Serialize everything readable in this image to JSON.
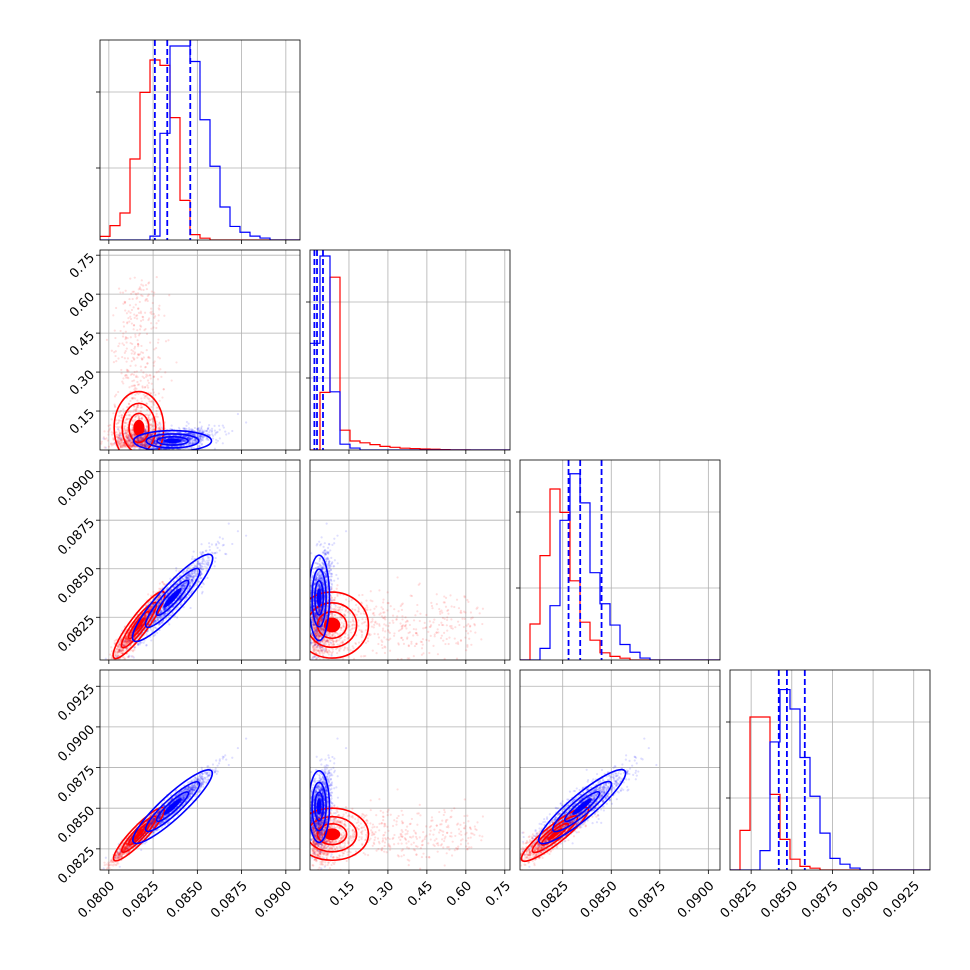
{
  "chart_data": {
    "type": "corner",
    "title": "",
    "grid": true,
    "series": [
      {
        "name": "",
        "color": "#ff0000"
      },
      {
        "name": "",
        "color": "#0000ff"
      }
    ],
    "quantiles_color": "#0000ff",
    "params": [
      {
        "index": 0,
        "range": [
          0.0795,
          0.0908
        ],
        "ticks": [
          "0.0800",
          "0.0825",
          "0.0850",
          "0.0875",
          "0.0900"
        ],
        "tick_values": [
          0.08,
          0.0825,
          0.085,
          0.0875,
          0.09
        ],
        "quantiles": [
          0.0826,
          0.0833,
          0.0846
        ],
        "hist_red": [
          0.02,
          0.08,
          0.15,
          0.45,
          0.82,
          1.0,
          0.97,
          0.68,
          0.22,
          0.03,
          0.01,
          0.0,
          0.0,
          0.0,
          0.0,
          0.0,
          0.0,
          0.0,
          0.0,
          0.0
        ],
        "hist_blue": [
          0.0,
          0.0,
          0.0,
          0.0,
          0.0,
          0.02,
          0.55,
          1.0,
          1.0,
          0.92,
          0.62,
          0.38,
          0.17,
          0.07,
          0.04,
          0.02,
          0.01,
          0.0,
          0.0,
          0.0
        ]
      },
      {
        "index": 1,
        "range": [
          0.0,
          0.77
        ],
        "ticks": [
          "0.15",
          "0.30",
          "0.45",
          "0.60",
          "0.75"
        ],
        "tick_values": [
          0.15,
          0.3,
          0.45,
          0.6,
          0.75
        ],
        "quantiles": [
          0.017,
          0.027,
          0.05
        ],
        "hist_red": [
          0.0,
          0.32,
          0.96,
          0.11,
          0.05,
          0.04,
          0.03,
          0.02,
          0.015,
          0.01,
          0.008,
          0.006,
          0.004,
          0.002,
          0.001,
          0.001,
          0.0,
          0.0,
          0.0,
          0.0
        ],
        "hist_blue": [
          0.55,
          1.0,
          0.3,
          0.03,
          0.01,
          0.0,
          0.0,
          0.0,
          0.0,
          0.0,
          0.0,
          0.0,
          0.0,
          0.0,
          0.0,
          0.0,
          0.0,
          0.0,
          0.0,
          0.0
        ]
      },
      {
        "index": 2,
        "range": [
          0.0803,
          0.0906
        ],
        "ticks": [
          "0.0825",
          "0.0850",
          "0.0875",
          "0.0900"
        ],
        "tick_values": [
          0.0825,
          0.085,
          0.0875,
          0.09
        ],
        "quantiles": [
          0.0828,
          0.0834,
          0.0845
        ],
        "hist_red": [
          0.0,
          0.2,
          0.58,
          0.95,
          0.82,
          0.44,
          0.21,
          0.11,
          0.04,
          0.02,
          0.01,
          0.0,
          0.0,
          0.0,
          0.0,
          0.0,
          0.0,
          0.0,
          0.0,
          0.0
        ],
        "hist_blue": [
          0.0,
          0.0,
          0.06,
          0.28,
          0.72,
          0.96,
          0.81,
          0.45,
          0.29,
          0.18,
          0.08,
          0.04,
          0.01,
          0.0,
          0.0,
          0.0,
          0.0,
          0.0,
          0.0,
          0.0
        ]
      },
      {
        "index": 3,
        "range": [
          0.0812,
          0.0935
        ],
        "ticks": [
          "0.0825",
          "0.0850",
          "0.0875",
          "0.0900",
          "0.0925"
        ],
        "tick_values": [
          0.0825,
          0.085,
          0.0875,
          0.09,
          0.0925
        ],
        "quantiles": [
          0.0842,
          0.0847,
          0.0858
        ],
        "hist_red": [
          0.0,
          0.22,
          0.85,
          0.85,
          0.42,
          0.17,
          0.06,
          0.02,
          0.01,
          0.0,
          0.0,
          0.0,
          0.0,
          0.0,
          0.0,
          0.0,
          0.0,
          0.0,
          0.0,
          0.0
        ],
        "hist_blue": [
          0.0,
          0.0,
          0.0,
          0.1,
          0.66,
          0.93,
          0.83,
          0.58,
          0.38,
          0.19,
          0.06,
          0.03,
          0.01,
          0.0,
          0.0,
          0.0,
          0.0,
          0.0,
          0.0,
          0.0
        ]
      }
    ],
    "samples": {
      "red_mean": [
        0.0817,
        0.085,
        0.0821,
        0.0834
      ],
      "red_sd": [
        0.0007,
        0.07,
        0.00085,
        0.0008
      ],
      "blue_mean": [
        0.0836,
        0.035,
        0.0835,
        0.0851
      ],
      "blue_sd": [
        0.0011,
        0.02,
        0.0011,
        0.0011
      ]
    },
    "diag_yticks_top": [
      0.26,
      0.64
    ]
  }
}
